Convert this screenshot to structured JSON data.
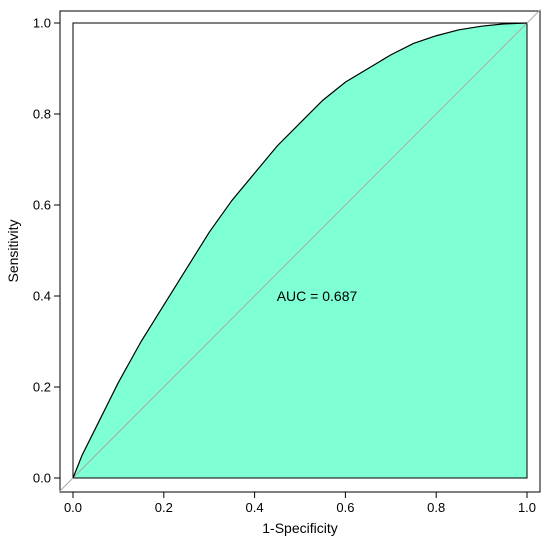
{
  "chart_data": {
    "type": "area",
    "title": "",
    "xlabel": "1-Specificity",
    "ylabel": "Sensitivity",
    "xlim": [
      0,
      1
    ],
    "ylim": [
      0,
      1
    ],
    "xticks": [
      "0.0",
      "0.2",
      "0.4",
      "0.6",
      "0.8",
      "1.0"
    ],
    "yticks": [
      "0.0",
      "0.2",
      "0.4",
      "0.6",
      "0.8",
      "1.0"
    ],
    "grid": false,
    "fill_color": "#7fffd4",
    "curve_color": "#000000",
    "diagonal_color": "#aaaaaa",
    "annotation": "AUC = 0.687",
    "series": [
      {
        "x": [
          0.0,
          0.02,
          0.05,
          0.08,
          0.1,
          0.15,
          0.2,
          0.25,
          0.3,
          0.35,
          0.4,
          0.45,
          0.5,
          0.55,
          0.6,
          0.65,
          0.7,
          0.75,
          0.8,
          0.85,
          0.9,
          0.95,
          1.0
        ],
        "y": [
          0.0,
          0.05,
          0.11,
          0.17,
          0.21,
          0.3,
          0.38,
          0.46,
          0.54,
          0.61,
          0.67,
          0.73,
          0.78,
          0.83,
          0.87,
          0.9,
          0.93,
          0.955,
          0.972,
          0.985,
          0.993,
          0.998,
          1.0
        ]
      },
      {
        "x": [
          0,
          1
        ],
        "y": [
          0,
          1
        ]
      }
    ]
  }
}
